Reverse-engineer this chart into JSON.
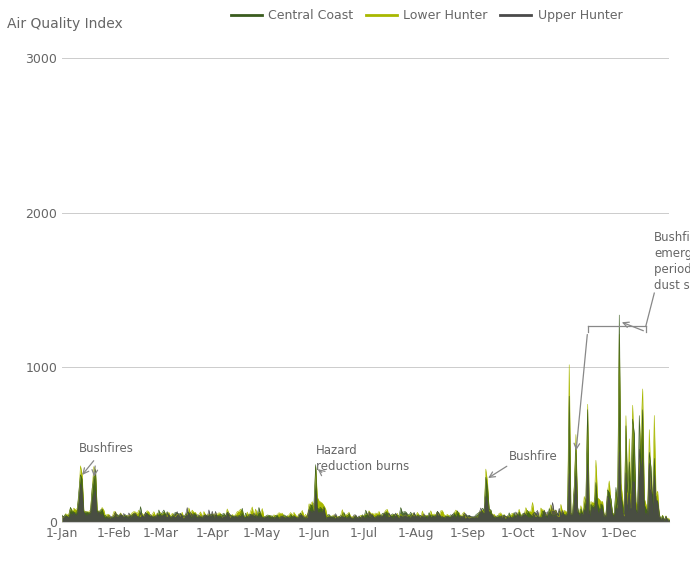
{
  "title": "Air Quality Index",
  "legend_entries": [
    "Central Coast",
    "Lower Hunter",
    "Upper Hunter"
  ],
  "colors": {
    "central_coast": "#3a5c1e",
    "lower_hunter": "#a8b800",
    "upper_hunter": "#4a4a4a"
  },
  "ylim": [
    0,
    3000
  ],
  "yticks": [
    0,
    1000,
    2000,
    3000
  ],
  "xlabel_months": [
    "1-Jan",
    "1-Feb",
    "1-Mar",
    "1-Apr",
    "1-May",
    "1-Jun",
    "1-Jul",
    "1-Aug",
    "1-Sep",
    "1-Oct",
    "1-Nov",
    "1-Dec"
  ],
  "month_starts": [
    0,
    31,
    59,
    90,
    120,
    151,
    181,
    212,
    243,
    273,
    304,
    334
  ],
  "background_color": "#ffffff",
  "grid_color": "#cccccc",
  "font_color": "#666666",
  "annotation_color": "#888888"
}
